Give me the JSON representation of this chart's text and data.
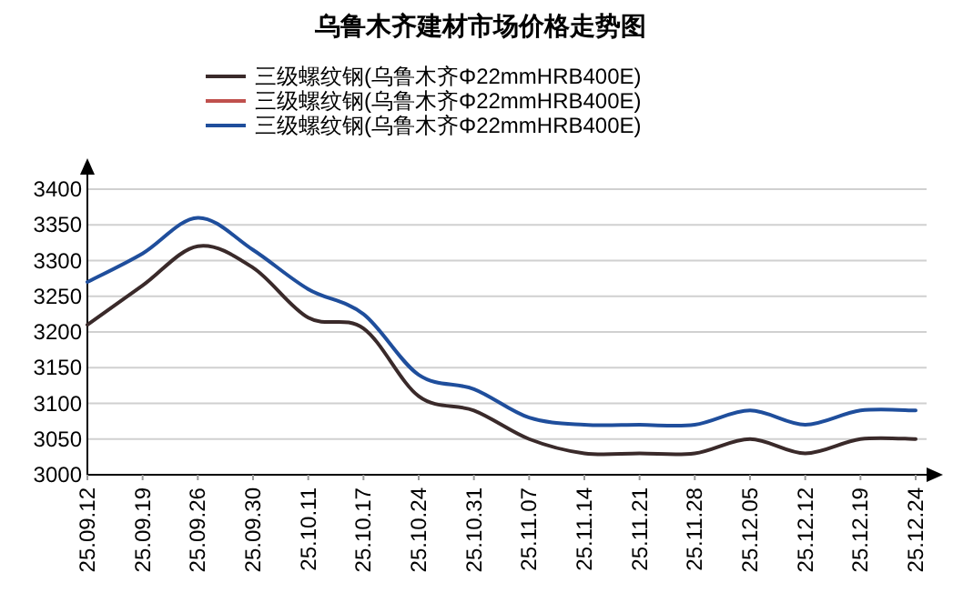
{
  "chart_data": {
    "type": "line",
    "title": "乌鲁木齐建材市场价格走势图",
    "categories": [
      "25.09.12",
      "25.09.19",
      "25.09.26",
      "25.09.30",
      "25.10.11",
      "25.10.17",
      "25.10.24",
      "25.10.31",
      "25.11.07",
      "25.11.14",
      "25.11.21",
      "25.11.28",
      "25.12.05",
      "25.12.12",
      "25.12.19",
      "25.12.24"
    ],
    "series": [
      {
        "name": "三级螺纹钢(乌鲁木齐Φ22mmHRB400E)",
        "color": "#3a2a2a",
        "values": [
          3210,
          3265,
          3320,
          3290,
          3220,
          3205,
          3110,
          3090,
          3050,
          3030,
          3030,
          3030,
          3050,
          3030,
          3050,
          3050
        ]
      },
      {
        "name": "三级螺纹钢(乌鲁木齐Φ22mmHRB400E)",
        "color": "#c0504d",
        "values": [
          null,
          null,
          null,
          null,
          null,
          null,
          null,
          null,
          null,
          null,
          null,
          null,
          null,
          null,
          null,
          null
        ]
      },
      {
        "name": "三级螺纹钢(乌鲁木齐Φ22mmHRB400E)",
        "color": "#1f4e9c",
        "values": [
          3270,
          3310,
          3360,
          3315,
          3260,
          3225,
          3140,
          3120,
          3080,
          3070,
          3070,
          3070,
          3090,
          3070,
          3090,
          3090
        ]
      }
    ],
    "ylim": [
      3000,
      3400
    ],
    "yticks": [
      3000,
      3050,
      3100,
      3150,
      3200,
      3250,
      3300,
      3350,
      3400
    ],
    "grid": "y",
    "legend": "top",
    "marker": "none",
    "line_style": "solid"
  }
}
